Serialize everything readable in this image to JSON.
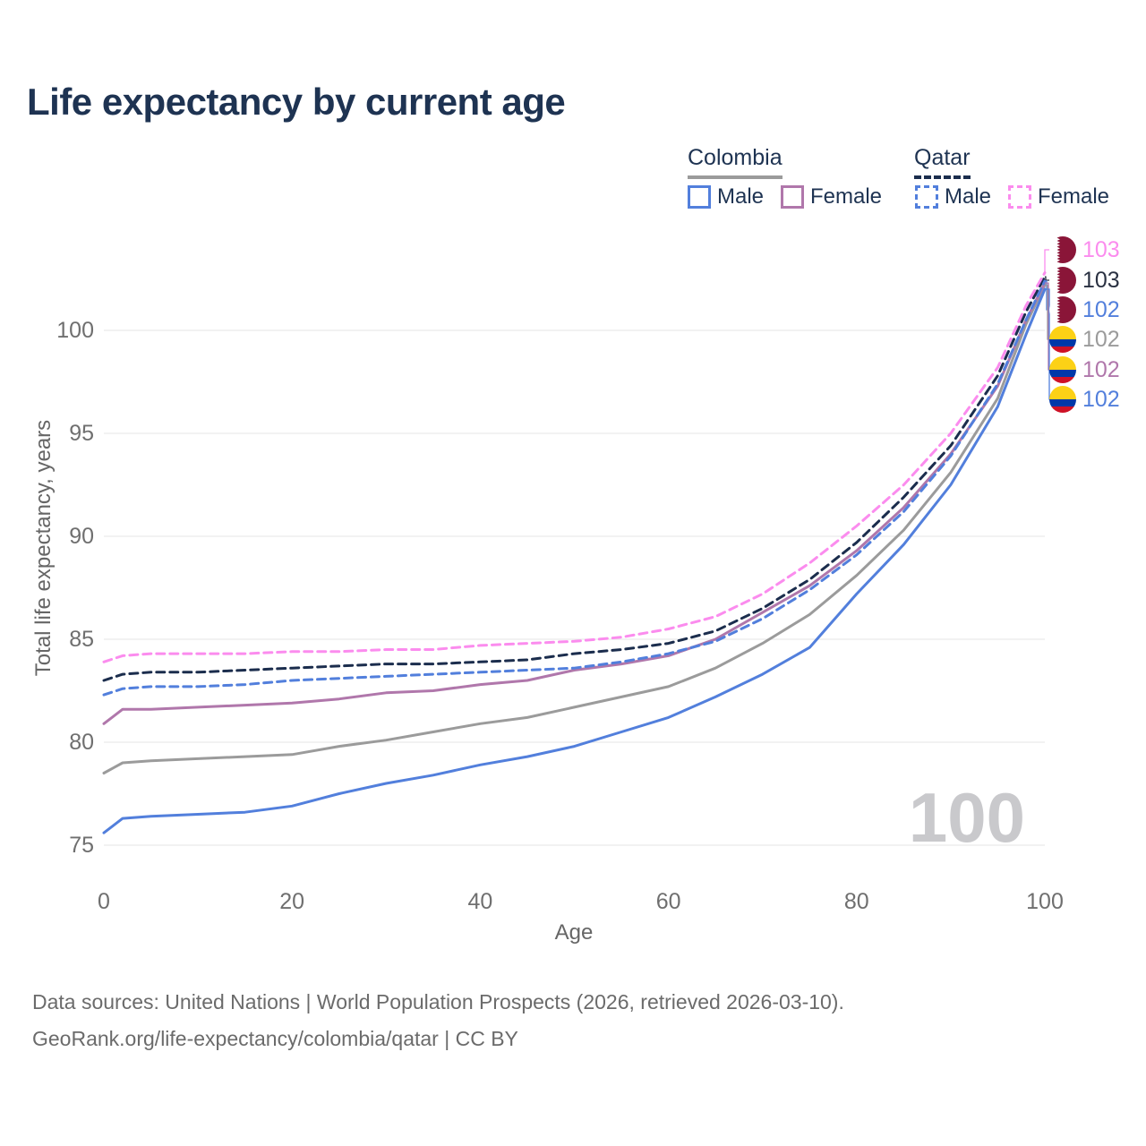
{
  "title": "Life expectancy by current age",
  "watermark": "100",
  "legend": {
    "groups": [
      {
        "id": "colombia",
        "label": "Colombia",
        "line_style": "solid",
        "line_color": "#9b9b9b",
        "items": [
          {
            "id": "colombia-male",
            "label": "Male",
            "color": "#527fdc",
            "dashed": false
          },
          {
            "id": "colombia-female",
            "label": "Female",
            "color": "#b077ab",
            "dashed": false
          }
        ]
      },
      {
        "id": "qatar",
        "label": "Qatar",
        "line_style": "dashed",
        "line_color": "#1b2d4d",
        "items": [
          {
            "id": "qatar-male",
            "label": "Male",
            "color": "#527fdc",
            "dashed": true
          },
          {
            "id": "qatar-female",
            "label": "Female",
            "color": "#fb8cee",
            "dashed": true
          }
        ]
      }
    ]
  },
  "chart_data": {
    "type": "line",
    "title": "Life expectancy by current age",
    "xlabel": "Age",
    "ylabel": "Total life expectancy, years",
    "xlim": [
      0,
      100
    ],
    "ylim": [
      75,
      100
    ],
    "x_ticks": [
      0,
      20,
      40,
      60,
      80,
      100
    ],
    "y_ticks": [
      75,
      80,
      85,
      90,
      95,
      100
    ],
    "grid": "horizontal",
    "legend_position": "top-right",
    "x": [
      0,
      2,
      5,
      10,
      15,
      20,
      25,
      30,
      35,
      40,
      45,
      50,
      55,
      60,
      65,
      70,
      75,
      80,
      85,
      90,
      95,
      98,
      100
    ],
    "series": [
      {
        "name": "Colombia",
        "sex": "both",
        "color": "#9b9b9b",
        "dashed": false,
        "values": [
          78.5,
          79.0,
          79.1,
          79.2,
          79.3,
          79.4,
          79.8,
          80.1,
          80.5,
          80.9,
          81.2,
          81.7,
          82.2,
          82.7,
          83.6,
          84.8,
          86.2,
          88.1,
          90.3,
          93.1,
          96.7,
          100.3,
          102.2
        ]
      },
      {
        "name": "Colombia Male",
        "sex": "male",
        "color": "#527fdc",
        "dashed": false,
        "values": [
          75.6,
          76.3,
          76.4,
          76.5,
          76.6,
          76.9,
          77.5,
          78.0,
          78.4,
          78.9,
          79.3,
          79.8,
          80.5,
          81.2,
          82.2,
          83.3,
          84.6,
          87.2,
          89.6,
          92.5,
          96.3,
          99.8,
          102.0
        ]
      },
      {
        "name": "Colombia Female",
        "sex": "female",
        "color": "#b077ab",
        "dashed": false,
        "values": [
          80.9,
          81.6,
          81.6,
          81.7,
          81.8,
          81.9,
          82.1,
          82.4,
          82.5,
          82.8,
          83.0,
          83.5,
          83.8,
          84.2,
          85.0,
          86.3,
          87.6,
          89.3,
          91.4,
          94.0,
          97.3,
          100.5,
          102.3
        ]
      },
      {
        "name": "Qatar",
        "sex": "both",
        "color": "#1b2d4d",
        "dashed": true,
        "values": [
          83.0,
          83.3,
          83.4,
          83.4,
          83.5,
          83.6,
          83.7,
          83.8,
          83.8,
          83.9,
          84.0,
          84.3,
          84.5,
          84.8,
          85.4,
          86.5,
          87.9,
          89.7,
          91.9,
          94.4,
          97.8,
          100.9,
          102.6
        ]
      },
      {
        "name": "Qatar Male",
        "sex": "male",
        "color": "#527fdc",
        "dashed": true,
        "values": [
          82.3,
          82.6,
          82.7,
          82.7,
          82.8,
          83.0,
          83.1,
          83.2,
          83.3,
          83.4,
          83.5,
          83.6,
          83.9,
          84.3,
          84.9,
          86.0,
          87.4,
          89.1,
          91.2,
          93.9,
          97.4,
          100.5,
          102.4
        ]
      },
      {
        "name": "Qatar Female",
        "sex": "female",
        "color": "#fb8cee",
        "dashed": true,
        "values": [
          83.9,
          84.2,
          84.3,
          84.3,
          84.3,
          84.4,
          84.4,
          84.5,
          84.5,
          84.7,
          84.8,
          84.9,
          85.1,
          85.5,
          86.1,
          87.2,
          88.7,
          90.5,
          92.5,
          95.0,
          98.2,
          101.2,
          102.8
        ]
      }
    ]
  },
  "end_labels": [
    {
      "value": "103",
      "series": "Qatar Female",
      "flag": "qatar",
      "color": "#fb8cee"
    },
    {
      "value": "103",
      "series": "Qatar",
      "flag": "qatar",
      "color": "#2a3142"
    },
    {
      "value": "102",
      "series": "Qatar Male",
      "flag": "qatar",
      "color": "#527fdc"
    },
    {
      "value": "102",
      "series": "Colombia",
      "flag": "colombia",
      "color": "#9b9b9b"
    },
    {
      "value": "102",
      "series": "Colombia Female",
      "flag": "colombia",
      "color": "#b077ab"
    },
    {
      "value": "102",
      "series": "Colombia Male",
      "flag": "colombia",
      "color": "#527fdc"
    }
  ],
  "flag_colors": {
    "qatar": {
      "maroon": "#8a1538",
      "white": "#ffffff"
    },
    "colombia": {
      "yellow": "#fcd116",
      "blue": "#0038a8",
      "red": "#ce1126"
    }
  },
  "footer": {
    "line1": "Data sources: United Nations | World Population Prospects (2026, retrieved 2026-03-10).",
    "line2": "GeoRank.org/life-expectancy/colombia/qatar | CC BY"
  }
}
